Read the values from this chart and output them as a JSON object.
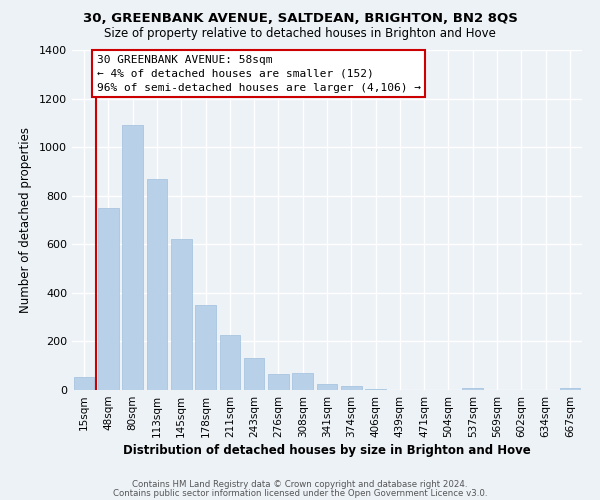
{
  "title1": "30, GREENBANK AVENUE, SALTDEAN, BRIGHTON, BN2 8QS",
  "title2": "Size of property relative to detached houses in Brighton and Hove",
  "xlabel": "Distribution of detached houses by size in Brighton and Hove",
  "ylabel": "Number of detached properties",
  "bar_labels": [
    "15sqm",
    "48sqm",
    "80sqm",
    "113sqm",
    "145sqm",
    "178sqm",
    "211sqm",
    "243sqm",
    "276sqm",
    "308sqm",
    "341sqm",
    "374sqm",
    "406sqm",
    "439sqm",
    "471sqm",
    "504sqm",
    "537sqm",
    "569sqm",
    "602sqm",
    "634sqm",
    "667sqm"
  ],
  "bar_values": [
    52,
    750,
    1090,
    870,
    620,
    350,
    225,
    130,
    65,
    70,
    25,
    18,
    5,
    0,
    0,
    0,
    10,
    0,
    0,
    0,
    10
  ],
  "bar_color": "#b8d0e8",
  "vline_x": 0.5,
  "vline_color": "#cc0000",
  "annotation_title": "30 GREENBANK AVENUE: 58sqm",
  "annotation_line1": "← 4% of detached houses are smaller (152)",
  "annotation_line2": "96% of semi-detached houses are larger (4,106) →",
  "annotation_box_color": "#ffffff",
  "annotation_box_edgecolor": "#cc0000",
  "ylim": [
    0,
    1400
  ],
  "yticks": [
    0,
    200,
    400,
    600,
    800,
    1000,
    1200,
    1400
  ],
  "footer1": "Contains HM Land Registry data © Crown copyright and database right 2024.",
  "footer2": "Contains public sector information licensed under the Open Government Licence v3.0.",
  "background_color": "#edf2f7"
}
